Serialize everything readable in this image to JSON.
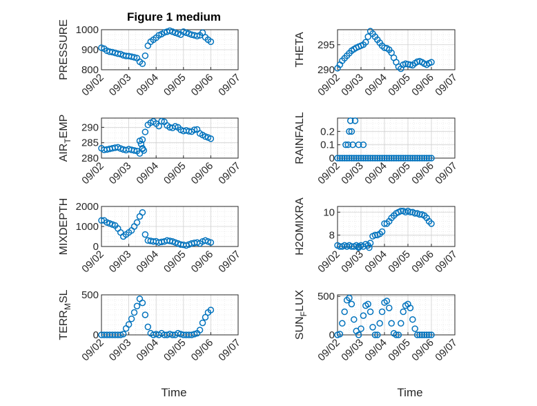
{
  "figure": {
    "title": "Figure 1 medium",
    "xlabel": "Time"
  },
  "colors": {
    "marker": "#0072BD",
    "axis": "#262626",
    "grid": "#d0d0d0",
    "minor_grid": "#dedede"
  },
  "chart_data": [
    {
      "type": "scatter",
      "title": "Figure 1 medium",
      "xlabel": "",
      "ylabel": "PRESSURE",
      "ylim": [
        800,
        1000
      ],
      "yticks": [
        800,
        900,
        1000
      ],
      "ytick_labels": [
        "800",
        "900",
        "1000"
      ],
      "xlim": [
        0,
        5
      ],
      "xticks": [
        0,
        1,
        2,
        3,
        4,
        5
      ],
      "xtick_labels": [
        "09/02",
        "09/03",
        "09/04",
        "09/05",
        "09/06",
        "09/07"
      ],
      "grid": true,
      "x": [
        0,
        0.1,
        0.2,
        0.3,
        0.4,
        0.5,
        0.6,
        0.7,
        0.8,
        0.9,
        1.0,
        1.1,
        1.2,
        1.3,
        1.4,
        1.5,
        1.6,
        1.7,
        1.8,
        1.9,
        2.0,
        2.1,
        2.2,
        2.3,
        2.4,
        2.5,
        2.6,
        2.7,
        2.8,
        2.9,
        3.0,
        3.1,
        3.2,
        3.3,
        3.4,
        3.5,
        3.6,
        3.7,
        3.8,
        3.9,
        4.0
      ],
      "y": [
        910,
        905,
        895,
        890,
        888,
        884,
        880,
        878,
        872,
        869,
        868,
        865,
        862,
        858,
        840,
        830,
        870,
        920,
        940,
        950,
        960,
        972,
        978,
        986,
        990,
        995,
        990,
        985,
        980,
        975,
        990,
        985,
        980,
        975,
        972,
        968,
        972,
        985,
        962,
        950,
        940
      ]
    },
    {
      "type": "scatter",
      "xlabel": "",
      "ylabel": "THETA",
      "ylim": [
        290,
        298
      ],
      "yticks": [
        290,
        295
      ],
      "ytick_labels": [
        "290",
        "295"
      ],
      "xlim": [
        0,
        5
      ],
      "xticks": [
        0,
        1,
        2,
        3,
        4,
        5
      ],
      "xtick_labels": [
        "09/02",
        "09/03",
        "09/04",
        "09/05",
        "09/06",
        "09/07"
      ],
      "grid": true,
      "x": [
        0,
        0.1,
        0.2,
        0.3,
        0.4,
        0.5,
        0.6,
        0.7,
        0.8,
        0.9,
        1.0,
        1.1,
        1.2,
        1.3,
        1.4,
        1.5,
        1.6,
        1.7,
        1.8,
        1.9,
        2.0,
        2.1,
        2.2,
        2.3,
        2.4,
        2.5,
        2.6,
        2.7,
        2.8,
        2.9,
        3.0,
        3.1,
        3.2,
        3.3,
        3.4,
        3.5,
        3.6,
        3.7,
        3.8,
        3.9,
        4.0
      ],
      "y": [
        290.3,
        291.0,
        291.8,
        292.3,
        292.8,
        293.3,
        293.8,
        294.1,
        294.4,
        294.6,
        294.8,
        295.0,
        295.5,
        296.6,
        297.7,
        297.2,
        296.6,
        296.0,
        295.4,
        294.8,
        294.4,
        294.3,
        294.0,
        293.4,
        292.4,
        291.5,
        290.6,
        290.2,
        291.0,
        291.2,
        291.1,
        291.0,
        290.9,
        291.3,
        291.6,
        291.7,
        291.5,
        291.2,
        291.0,
        291.3,
        291.5
      ]
    },
    {
      "type": "scatter",
      "xlabel": "",
      "ylabel": "AIR_TEMP",
      "ylabel_main": "AIR",
      "ylabel_sub": "T",
      "ylabel_tail": "EMP",
      "ylim": [
        280,
        293
      ],
      "yticks": [
        280,
        285,
        290
      ],
      "ytick_labels": [
        "280",
        "285",
        "290"
      ],
      "xlim": [
        0,
        5
      ],
      "xticks": [
        0,
        1,
        2,
        3,
        4,
        5
      ],
      "xtick_labels": [
        "09/02",
        "09/03",
        "09/04",
        "09/05",
        "09/06",
        "09/07"
      ],
      "grid": true,
      "x": [
        0,
        0.1,
        0.2,
        0.3,
        0.4,
        0.5,
        0.6,
        0.7,
        0.8,
        0.9,
        1.0,
        1.1,
        1.2,
        1.3,
        1.4,
        1.5,
        1.6,
        1.7,
        1.8,
        1.9,
        2.0,
        2.1,
        2.2,
        2.3,
        2.4,
        2.5,
        2.6,
        2.7,
        2.8,
        2.9,
        3.0,
        3.1,
        3.2,
        3.3,
        3.4,
        3.5,
        3.6,
        3.7,
        3.8,
        3.9,
        4.0,
        1.4,
        1.45,
        1.5,
        1.5,
        1.55
      ],
      "y": [
        283.2,
        282.7,
        282.8,
        283.0,
        283.2,
        283.4,
        283.5,
        283.1,
        282.8,
        282.6,
        282.9,
        282.7,
        282.5,
        282.3,
        281.5,
        283.0,
        288.5,
        290.8,
        291.5,
        291.9,
        291.2,
        290.4,
        292.0,
        291.8,
        290.6,
        290.0,
        289.8,
        290.3,
        290.0,
        289.2,
        288.8,
        289.0,
        288.7,
        288.6,
        289.2,
        289.3,
        288.0,
        287.5,
        287.0,
        286.7,
        286.3,
        285.6,
        284.6,
        286.0,
        283.2,
        282.5
      ]
    },
    {
      "type": "scatter",
      "xlabel": "",
      "ylabel": "RAINFALL",
      "ylim": [
        0,
        0.3
      ],
      "yticks": [
        0,
        0.1,
        0.2
      ],
      "ytick_labels": [
        "0",
        "0.1",
        "0.2"
      ],
      "xlim": [
        0,
        5
      ],
      "xticks": [
        0,
        1,
        2,
        3,
        4,
        5
      ],
      "xtick_labels": [
        "09/02",
        "09/03",
        "09/04",
        "09/05",
        "09/06",
        "09/07"
      ],
      "grid": true,
      "x": [
        0,
        0.1,
        0.2,
        0.3,
        0.4,
        0.5,
        0.6,
        0.7,
        0.8,
        0.9,
        1.0,
        1.1,
        1.2,
        1.3,
        1.4,
        1.5,
        1.6,
        1.7,
        1.8,
        1.9,
        2.0,
        2.1,
        2.2,
        2.3,
        2.4,
        2.5,
        2.6,
        2.7,
        2.8,
        2.9,
        3.0,
        3.1,
        3.2,
        3.3,
        3.4,
        3.5,
        3.6,
        3.7,
        3.8,
        3.9,
        4.0,
        0.35,
        0.45,
        0.5,
        0.55,
        0.6,
        0.65,
        0.75,
        0.9,
        1.1
      ],
      "y": [
        0,
        0,
        0,
        0,
        0,
        0,
        0,
        0,
        0,
        0,
        0,
        0,
        0,
        0,
        0,
        0,
        0,
        0,
        0,
        0,
        0,
        0,
        0,
        0,
        0,
        0,
        0,
        0,
        0,
        0,
        0,
        0,
        0,
        0,
        0,
        0,
        0,
        0,
        0,
        0,
        0,
        0.1,
        0.1,
        0.2,
        0.28,
        0.2,
        0.1,
        0.28,
        0.1,
        0.1
      ]
    },
    {
      "type": "scatter",
      "xlabel": "",
      "ylabel": "MIXDEPTH",
      "ylim": [
        0,
        2000
      ],
      "yticks": [
        0,
        1000,
        2000
      ],
      "ytick_labels": [
        "0",
        "1000",
        "2000"
      ],
      "xlim": [
        0,
        5
      ],
      "xticks": [
        0,
        1,
        2,
        3,
        4,
        5
      ],
      "xtick_labels": [
        "09/02",
        "09/03",
        "09/04",
        "09/05",
        "09/06",
        "09/07"
      ],
      "grid": true,
      "x": [
        0,
        0.1,
        0.2,
        0.3,
        0.4,
        0.5,
        0.6,
        0.7,
        0.8,
        0.9,
        1.0,
        1.1,
        1.2,
        1.3,
        1.4,
        1.5,
        1.6,
        1.7,
        1.8,
        1.9,
        2.0,
        2.1,
        2.2,
        2.3,
        2.4,
        2.5,
        2.6,
        2.7,
        2.8,
        2.9,
        3.0,
        3.1,
        3.2,
        3.3,
        3.4,
        3.5,
        3.6,
        3.7,
        3.8,
        3.9,
        4.0
      ],
      "y": [
        1300,
        1300,
        1200,
        1150,
        1100,
        1050,
        900,
        700,
        500,
        600,
        700,
        800,
        1000,
        1200,
        1500,
        1700,
        600,
        300,
        280,
        250,
        260,
        200,
        230,
        250,
        300,
        280,
        250,
        200,
        150,
        100,
        80,
        50,
        100,
        150,
        180,
        200,
        150,
        250,
        300,
        250,
        200
      ]
    },
    {
      "type": "scatter",
      "xlabel": "",
      "ylabel": "H2OMIXRA",
      "ylim": [
        7,
        10.5
      ],
      "yticks": [
        8,
        10
      ],
      "ytick_labels": [
        "8",
        "10"
      ],
      "xlim": [
        0,
        5
      ],
      "xticks": [
        0,
        1,
        2,
        3,
        4,
        5
      ],
      "xtick_labels": [
        "09/02",
        "09/03",
        "09/04",
        "09/05",
        "09/06",
        "09/07"
      ],
      "grid": true,
      "x": [
        0,
        0.1,
        0.2,
        0.3,
        0.4,
        0.5,
        0.6,
        0.7,
        0.8,
        0.9,
        1.0,
        1.1,
        1.2,
        1.3,
        1.4,
        1.5,
        1.6,
        1.7,
        1.8,
        1.9,
        2.0,
        2.1,
        2.2,
        2.3,
        2.4,
        2.5,
        2.6,
        2.7,
        2.8,
        2.9,
        3.0,
        3.1,
        3.2,
        3.3,
        3.4,
        3.5,
        3.6,
        3.7,
        3.8,
        3.9,
        4.0,
        0.9,
        1.35
      ],
      "y": [
        7.1,
        7.0,
        7.0,
        7.1,
        7.0,
        7.1,
        7.0,
        7.0,
        7.1,
        7.0,
        7.1,
        7.0,
        7.2,
        7.1,
        7.3,
        7.9,
        8.0,
        8.0,
        8.1,
        8.3,
        9.0,
        9.0,
        9.2,
        9.5,
        9.7,
        9.9,
        10.0,
        10.1,
        10.1,
        10.0,
        10.1,
        10.0,
        10.0,
        9.9,
        9.9,
        9.8,
        9.8,
        9.7,
        9.5,
        9.2,
        9.0,
        6.9,
        6.9
      ]
    },
    {
      "type": "scatter",
      "xlabel": "",
      "ylabel": "TERR_MSL",
      "ylabel_main": "TERR",
      "ylabel_sub": "M",
      "ylabel_tail": "SL",
      "ylim": [
        0,
        500
      ],
      "yticks": [
        0,
        500
      ],
      "ytick_labels": [
        "0",
        "500"
      ],
      "xlim": [
        0,
        5
      ],
      "xticks": [
        0,
        1,
        2,
        3,
        4,
        5
      ],
      "xtick_labels": [
        "09/02",
        "09/03",
        "09/04",
        "09/05",
        "09/06",
        "09/07"
      ],
      "grid": true,
      "x": [
        0,
        0.1,
        0.2,
        0.3,
        0.4,
        0.5,
        0.6,
        0.7,
        0.8,
        0.9,
        1.0,
        1.1,
        1.2,
        1.3,
        1.4,
        1.5,
        1.6,
        1.7,
        1.8,
        1.9,
        2.0,
        2.1,
        2.2,
        2.3,
        2.4,
        2.5,
        2.6,
        2.7,
        2.8,
        2.9,
        3.0,
        3.1,
        3.2,
        3.3,
        3.4,
        3.5,
        3.6,
        3.7,
        3.8,
        3.9,
        4.0
      ],
      "y": [
        0,
        0,
        0,
        0,
        0,
        0,
        0,
        0,
        10,
        80,
        130,
        200,
        280,
        360,
        450,
        400,
        250,
        100,
        20,
        0,
        10,
        0,
        20,
        0,
        0,
        10,
        0,
        0,
        20,
        10,
        0,
        0,
        0,
        0,
        10,
        20,
        60,
        150,
        220,
        280,
        310
      ]
    },
    {
      "type": "scatter",
      "xlabel": "",
      "ylabel": "SUN_FLUX",
      "ylabel_main": "SUN",
      "ylabel_sub": "F",
      "ylabel_tail": "LUX",
      "ylim": [
        0,
        520
      ],
      "yticks": [
        0,
        500
      ],
      "ytick_labels": [
        "0",
        "500"
      ],
      "xlim": [
        0,
        5
      ],
      "xticks": [
        0,
        1,
        2,
        3,
        4,
        5
      ],
      "xtick_labels": [
        "09/02",
        "09/03",
        "09/04",
        "09/05",
        "09/06",
        "09/07"
      ],
      "grid": true,
      "x": [
        0,
        0.1,
        0.2,
        0.3,
        0.4,
        0.5,
        0.6,
        0.7,
        0.8,
        0.9,
        1.0,
        1.1,
        1.2,
        1.3,
        1.4,
        1.5,
        1.6,
        1.7,
        1.8,
        1.9,
        2.0,
        2.1,
        2.2,
        2.3,
        2.4,
        2.5,
        2.6,
        2.7,
        2.8,
        2.9,
        3.0,
        3.1,
        3.2,
        3.3,
        3.4,
        3.5,
        3.6,
        3.7,
        3.8,
        3.9,
        4.0
      ],
      "y": [
        0,
        10,
        150,
        300,
        450,
        480,
        400,
        200,
        50,
        0,
        80,
        250,
        380,
        400,
        300,
        100,
        0,
        0,
        150,
        300,
        420,
        440,
        350,
        150,
        20,
        0,
        0,
        150,
        300,
        380,
        400,
        350,
        200,
        80,
        0,
        0,
        0,
        0,
        0,
        0,
        0
      ]
    }
  ]
}
